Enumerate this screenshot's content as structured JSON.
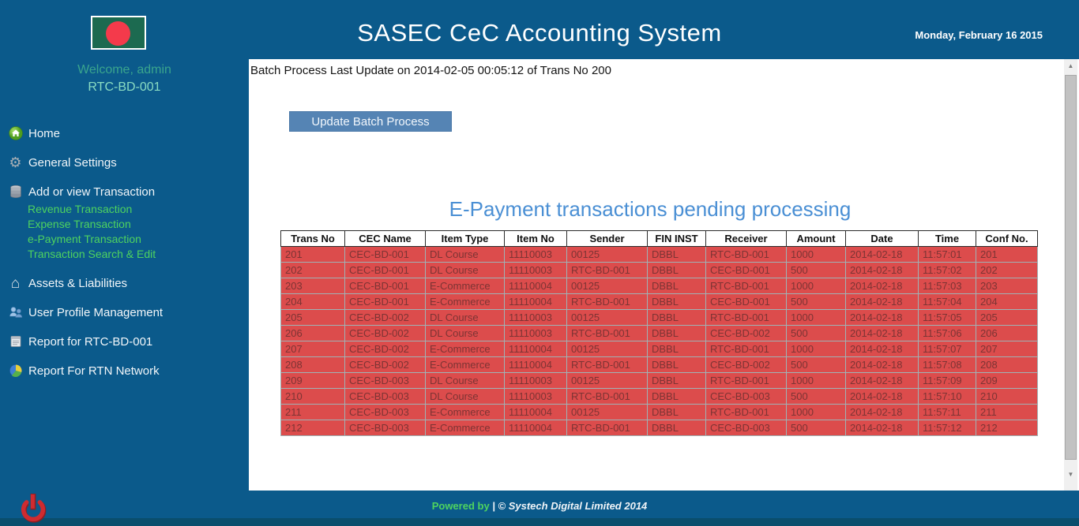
{
  "header": {
    "title": "SASEC CeC Accounting System",
    "date": "Monday, February 16 2015"
  },
  "sidebar": {
    "flag_icon": "bangladesh-flag-icon",
    "welcome": "Welcome, admin",
    "station": "RTC-BD-001",
    "items": [
      {
        "label": "Home",
        "icon": "home-icon"
      },
      {
        "label": "General Settings",
        "icon": "gear-icon"
      },
      {
        "label": "Add or view Transaction",
        "icon": "database-icon",
        "children": [
          "Revenue Transaction",
          "Expense Transaction",
          "e-Payment Transaction",
          "Transaction Search & Edit"
        ]
      },
      {
        "label": "Assets & Liabilities",
        "icon": "house-icon"
      },
      {
        "label": "User Profile Management",
        "icon": "users-icon"
      },
      {
        "label": "Report for RTC-BD-001",
        "icon": "report-icon"
      },
      {
        "label": "Report For RTN Network",
        "icon": "pie-chart-icon"
      }
    ],
    "logout_icon": "power-icon"
  },
  "main": {
    "batch_status": "Batch Process Last Update on 2014-02-05 00:05:12 of Trans No 200",
    "update_button": "Update Batch Process",
    "table_title": "E-Payment transactions pending processing"
  },
  "table": {
    "columns": [
      "Trans No",
      "CEC Name",
      "Item Type",
      "Item No",
      "Sender",
      "FIN INST",
      "Receiver",
      "Amount",
      "Date",
      "Time",
      "Conf No."
    ],
    "rows": [
      [
        "201",
        "CEC-BD-001",
        "DL Course",
        "11110003",
        "00125",
        "DBBL",
        "RTC-BD-001",
        "1000",
        "2014-02-18",
        "11:57:01",
        "201"
      ],
      [
        "202",
        "CEC-BD-001",
        "DL Course",
        "11110003",
        "RTC-BD-001",
        "DBBL",
        "CEC-BD-001",
        "500",
        "2014-02-18",
        "11:57:02",
        "202"
      ],
      [
        "203",
        "CEC-BD-001",
        "E-Commerce",
        "11110004",
        "00125",
        "DBBL",
        "RTC-BD-001",
        "1000",
        "2014-02-18",
        "11:57:03",
        "203"
      ],
      [
        "204",
        "CEC-BD-001",
        "E-Commerce",
        "11110004",
        "RTC-BD-001",
        "DBBL",
        "CEC-BD-001",
        "500",
        "2014-02-18",
        "11:57:04",
        "204"
      ],
      [
        "205",
        "CEC-BD-002",
        "DL Course",
        "11110003",
        "00125",
        "DBBL",
        "RTC-BD-001",
        "1000",
        "2014-02-18",
        "11:57:05",
        "205"
      ],
      [
        "206",
        "CEC-BD-002",
        "DL Course",
        "11110003",
        "RTC-BD-001",
        "DBBL",
        "CEC-BD-002",
        "500",
        "2014-02-18",
        "11:57:06",
        "206"
      ],
      [
        "207",
        "CEC-BD-002",
        "E-Commerce",
        "11110004",
        "00125",
        "DBBL",
        "RTC-BD-001",
        "1000",
        "2014-02-18",
        "11:57:07",
        "207"
      ],
      [
        "208",
        "CEC-BD-002",
        "E-Commerce",
        "11110004",
        "RTC-BD-001",
        "DBBL",
        "CEC-BD-002",
        "500",
        "2014-02-18",
        "11:57:08",
        "208"
      ],
      [
        "209",
        "CEC-BD-003",
        "DL Course",
        "11110003",
        "00125",
        "DBBL",
        "RTC-BD-001",
        "1000",
        "2014-02-18",
        "11:57:09",
        "209"
      ],
      [
        "210",
        "CEC-BD-003",
        "DL Course",
        "11110003",
        "RTC-BD-001",
        "DBBL",
        "CEC-BD-003",
        "500",
        "2014-02-18",
        "11:57:10",
        "210"
      ],
      [
        "211",
        "CEC-BD-003",
        "E-Commerce",
        "11110004",
        "00125",
        "DBBL",
        "RTC-BD-001",
        "1000",
        "2014-02-18",
        "11:57:11",
        "211"
      ],
      [
        "212",
        "CEC-BD-003",
        "E-Commerce",
        "11110004",
        "RTC-BD-001",
        "DBBL",
        "CEC-BD-003",
        "500",
        "2014-02-18",
        "11:57:12",
        "212"
      ]
    ]
  },
  "footer": {
    "powered_by": "Powered by ",
    "copyright": "| © Systech Digital Limited 2014"
  },
  "colors": {
    "primary_blue": "#0b5a8b",
    "bottom_strip_blue": "#0a4e6d",
    "button_blue": "#5584b4",
    "table_title_blue": "#4a8fd4",
    "row_red": "#dc4c4c",
    "row_text": "#7c3434",
    "submenu_green": "#4ed35f",
    "welcome_teal": "#3aa58d",
    "station_mint": "#8adcc2",
    "flag_green": "#1c6a50",
    "flag_red": "#f43a4b"
  }
}
